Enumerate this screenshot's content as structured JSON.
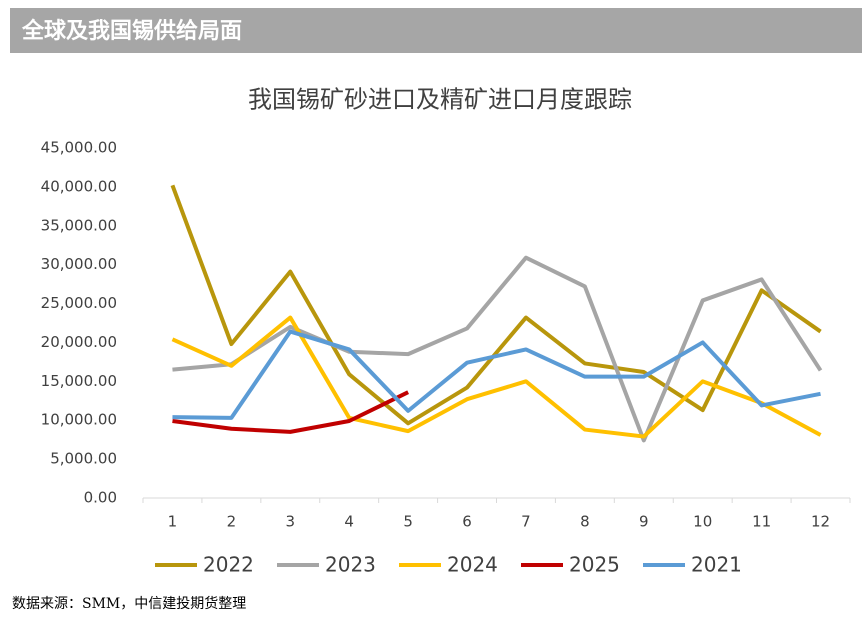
{
  "header": {
    "title": "全球及我国锡供给局面"
  },
  "chart_data": {
    "type": "line",
    "title": "我国锡矿砂进口及精矿进口月度跟踪",
    "categories": [
      "1",
      "2",
      "3",
      "4",
      "5",
      "6",
      "7",
      "8",
      "9",
      "10",
      "11",
      "12"
    ],
    "series": [
      {
        "name": "2022",
        "color": "#b8960c",
        "values": [
          40200,
          19800,
          29100,
          15900,
          9600,
          14200,
          23200,
          17300,
          16200,
          11300,
          26700,
          21400
        ]
      },
      {
        "name": "2023",
        "color": "#a5a5a5",
        "values": [
          16500,
          17200,
          22000,
          18800,
          18500,
          21800,
          30900,
          27200,
          7400,
          25400,
          28100,
          16400
        ]
      },
      {
        "name": "2024",
        "color": "#ffc000",
        "values": [
          20400,
          17000,
          23200,
          10300,
          8600,
          12700,
          15000,
          8800,
          7900,
          15000,
          12200,
          8100
        ]
      },
      {
        "name": "2025",
        "color": "#c00000",
        "values": [
          9900,
          8900,
          8500,
          9900,
          13600,
          null,
          null,
          null,
          null,
          null,
          null,
          null
        ]
      },
      {
        "name": "2021",
        "color": "#5b9bd5",
        "values": [
          10400,
          10300,
          21400,
          19100,
          11200,
          17400,
          19100,
          15600,
          15600,
          20000,
          11900,
          13400
        ]
      }
    ],
    "ylim": [
      0,
      45000
    ],
    "yticks": [
      {
        "value": 0,
        "label": "0.00"
      },
      {
        "value": 5000,
        "label": "5,000.00"
      },
      {
        "value": 10000,
        "label": "10,000.00"
      },
      {
        "value": 15000,
        "label": "15,000.00"
      },
      {
        "value": 20000,
        "label": "20,000.00"
      },
      {
        "value": 25000,
        "label": "25,000.00"
      },
      {
        "value": 30000,
        "label": "30,000.00"
      },
      {
        "value": 35000,
        "label": "35,000.00"
      },
      {
        "value": 40000,
        "label": "40,000.00"
      },
      {
        "value": 45000,
        "label": "45,000.00"
      }
    ],
    "legend": "bottom",
    "source": "数据来源：SMM，中信建投期货整理"
  }
}
